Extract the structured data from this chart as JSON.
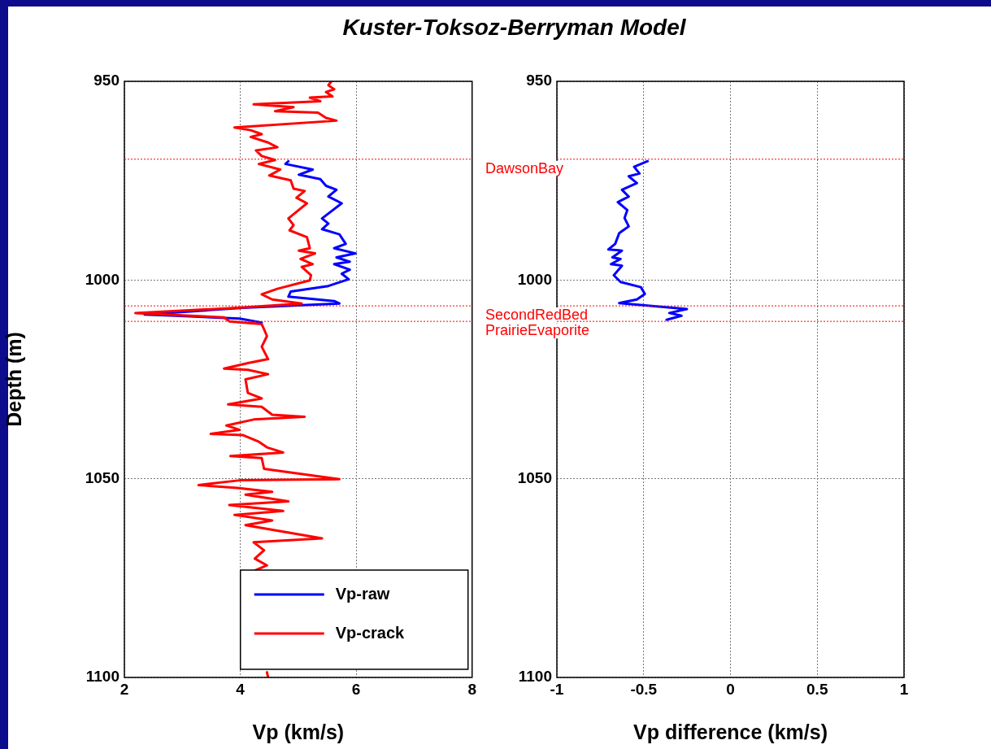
{
  "chart_data": [
    {
      "type": "line",
      "title": "Kuster-Toksoz-Berryman Model",
      "xlabel": "Vp (km/s)",
      "ylabel": "Depth (m)",
      "xlim": [
        2,
        8
      ],
      "xticks": [
        2,
        4,
        6,
        8
      ],
      "ylim": [
        1100,
        950
      ],
      "yticks": [
        950,
        1000,
        1050,
        1100
      ],
      "grid": true,
      "legend": "bottom right",
      "line_style": "solid",
      "marker": "none",
      "ref_lines": [
        {
          "axis": "y",
          "value": 969.6,
          "color": "#ff0000",
          "line_style": "dotted"
        },
        {
          "axis": "y",
          "value": 1006.5,
          "color": "#ff0000",
          "line_style": "dotted"
        },
        {
          "axis": "y",
          "value": 1010.4,
          "color": "#ff0000",
          "line_style": "dotted"
        }
      ],
      "series": [
        {
          "name": "Vp-raw",
          "color": "#0000ff",
          "x": [
            4.83,
            4.78,
            5.25,
            5.01,
            5.38,
            5.48,
            5.66,
            5.52,
            5.75,
            5.41,
            5.52,
            5.41,
            5.71,
            5.82,
            5.62,
            5.99,
            5.66,
            5.89,
            5.62,
            5.89,
            5.75,
            5.87,
            5.52,
            4.87,
            4.83,
            5.62,
            5.71,
            4.04,
            2.35,
            2.88,
            3.99,
            4.37
          ],
          "values": [
            970.1,
            970.8,
            972.2,
            973.5,
            974.6,
            976.3,
            977.3,
            979.0,
            980.7,
            984.5,
            985.8,
            987.2,
            988.5,
            990.9,
            992.0,
            993.3,
            994.3,
            995.4,
            996.0,
            997.4,
            998.4,
            999.8,
            1001.5,
            1002.9,
            1004.2,
            1005.3,
            1005.9,
            1007.0,
            1008.7,
            1009.0,
            1009.7,
            1010.7
          ]
        },
        {
          "name": "Vp-crack",
          "color": "#ff0000",
          "x": [
            5.57,
            5.52,
            5.62,
            5.48,
            5.59,
            5.2,
            5.38,
            4.23,
            4.92,
            4.6,
            5.34,
            5.48,
            5.66,
            3.9,
            4.18,
            4.37,
            4.18,
            4.48,
            4.64,
            4.27,
            4.37,
            4.6,
            4.32,
            4.69,
            4.5,
            4.87,
            4.92,
            5.11,
            4.97,
            5.15,
            4.83,
            4.92,
            4.85,
            5.15,
            5.2,
            5.01,
            5.29,
            5.04,
            5.25,
            5.06,
            5.22,
            5.2,
            4.64,
            4.37,
            4.55,
            5.06,
            3.95,
            2.19,
            3.72,
            3.81,
            4.37,
            4.41,
            4.46,
            4.37,
            4.48,
            4.13,
            3.72,
            4.13,
            4.48,
            4.09,
            4.13,
            4.37,
            3.79,
            4.37,
            4.55,
            5.11,
            4.23,
            3.76,
            3.99,
            3.49,
            4.04,
            4.32,
            4.46,
            4.74,
            3.83,
            4.37,
            4.41,
            5.71,
            3.99,
            3.28,
            3.95,
            4.55,
            4.09,
            4.83,
            3.81,
            4.74,
            3.9,
            4.55,
            4.09,
            5.41,
            4.23,
            4.41,
            4.25,
            4.46,
            4.25,
            null,
            4.46,
            4.48
          ],
          "values": [
            950.0,
            951.0,
            952.0,
            952.7,
            953.8,
            954.1,
            955.0,
            955.8,
            956.5,
            957.5,
            957.9,
            959.2,
            959.9,
            961.6,
            962.3,
            963.3,
            964.0,
            965.4,
            966.6,
            967.4,
            968.8,
            969.8,
            970.8,
            972.2,
            973.7,
            974.9,
            977.0,
            977.6,
            979.3,
            980.7,
            984.5,
            986.2,
            987.5,
            989.2,
            992.0,
            992.6,
            993.3,
            994.7,
            996.0,
            996.7,
            998.8,
            1000.1,
            1002.2,
            1003.6,
            1004.9,
            1005.9,
            1007.0,
            1008.3,
            1009.4,
            1010.4,
            1011.1,
            1012.4,
            1014.1,
            1016.8,
            1019.9,
            1020.9,
            1022.3,
            1022.6,
            1023.7,
            1025.0,
            1028.4,
            1029.8,
            1031.3,
            1031.9,
            1033.9,
            1034.4,
            1035.1,
            1036.6,
            1037.7,
            1038.7,
            1039.0,
            1040.7,
            1042.1,
            1043.4,
            1044.3,
            1044.8,
            1047.5,
            1050.1,
            1050.4,
            1051.6,
            1052.3,
            1053.3,
            1054.0,
            1055.7,
            1056.6,
            1058.1,
            1059.1,
            1060.5,
            1061.7,
            1065.0,
            1066.0,
            1068.0,
            1070.1,
            1071.8,
            1073.1,
            null,
            1098.7,
            1100.0
          ]
        }
      ]
    },
    {
      "type": "line",
      "xlabel": "Vp difference (km/s)",
      "xlim": [
        -1,
        1
      ],
      "xticks": [
        -1,
        -0.5,
        0,
        0.5,
        1
      ],
      "ylim": [
        1100,
        950
      ],
      "yticks": [
        950,
        1000,
        1050,
        1100
      ],
      "grid": true,
      "line_style": "solid",
      "marker": "none",
      "ref_lines": [
        {
          "axis": "y",
          "value": 969.6,
          "label": "DawsonBay",
          "color": "#ff0000",
          "line_style": "dotted"
        },
        {
          "axis": "y",
          "value": 1006.5,
          "label": "SecondRedBed",
          "color": "#ff0000",
          "line_style": "dotted"
        },
        {
          "axis": "y",
          "value": 1010.4,
          "label": "PrairieEvaporite",
          "color": "#ff0000",
          "line_style": "dotted"
        }
      ],
      "series": [
        {
          "color": "#0000ff",
          "x": [
            -0.477,
            -0.555,
            -0.524,
            -0.586,
            -0.539,
            -0.625,
            -0.586,
            -0.649,
            -0.594,
            -0.61,
            -0.586,
            -0.641,
            -0.664,
            -0.703,
            -0.625,
            -0.68,
            -0.633,
            -0.688,
            -0.625,
            -0.672,
            -0.633,
            -0.516,
            -0.493,
            -0.539,
            -0.641,
            -0.251,
            -0.352,
            -0.282,
            -0.368
          ],
          "values": [
            970.1,
            971.5,
            973.2,
            973.9,
            975.6,
            977.3,
            979.0,
            980.4,
            982.4,
            984.4,
            986.5,
            988.2,
            990.9,
            992.3,
            992.6,
            994.3,
            994.7,
            996.0,
            996.4,
            998.8,
            1000.5,
            1001.8,
            1003.5,
            1004.9,
            1005.8,
            1007.3,
            1008.3,
            1009.0,
            1010.0
          ]
        }
      ]
    }
  ]
}
